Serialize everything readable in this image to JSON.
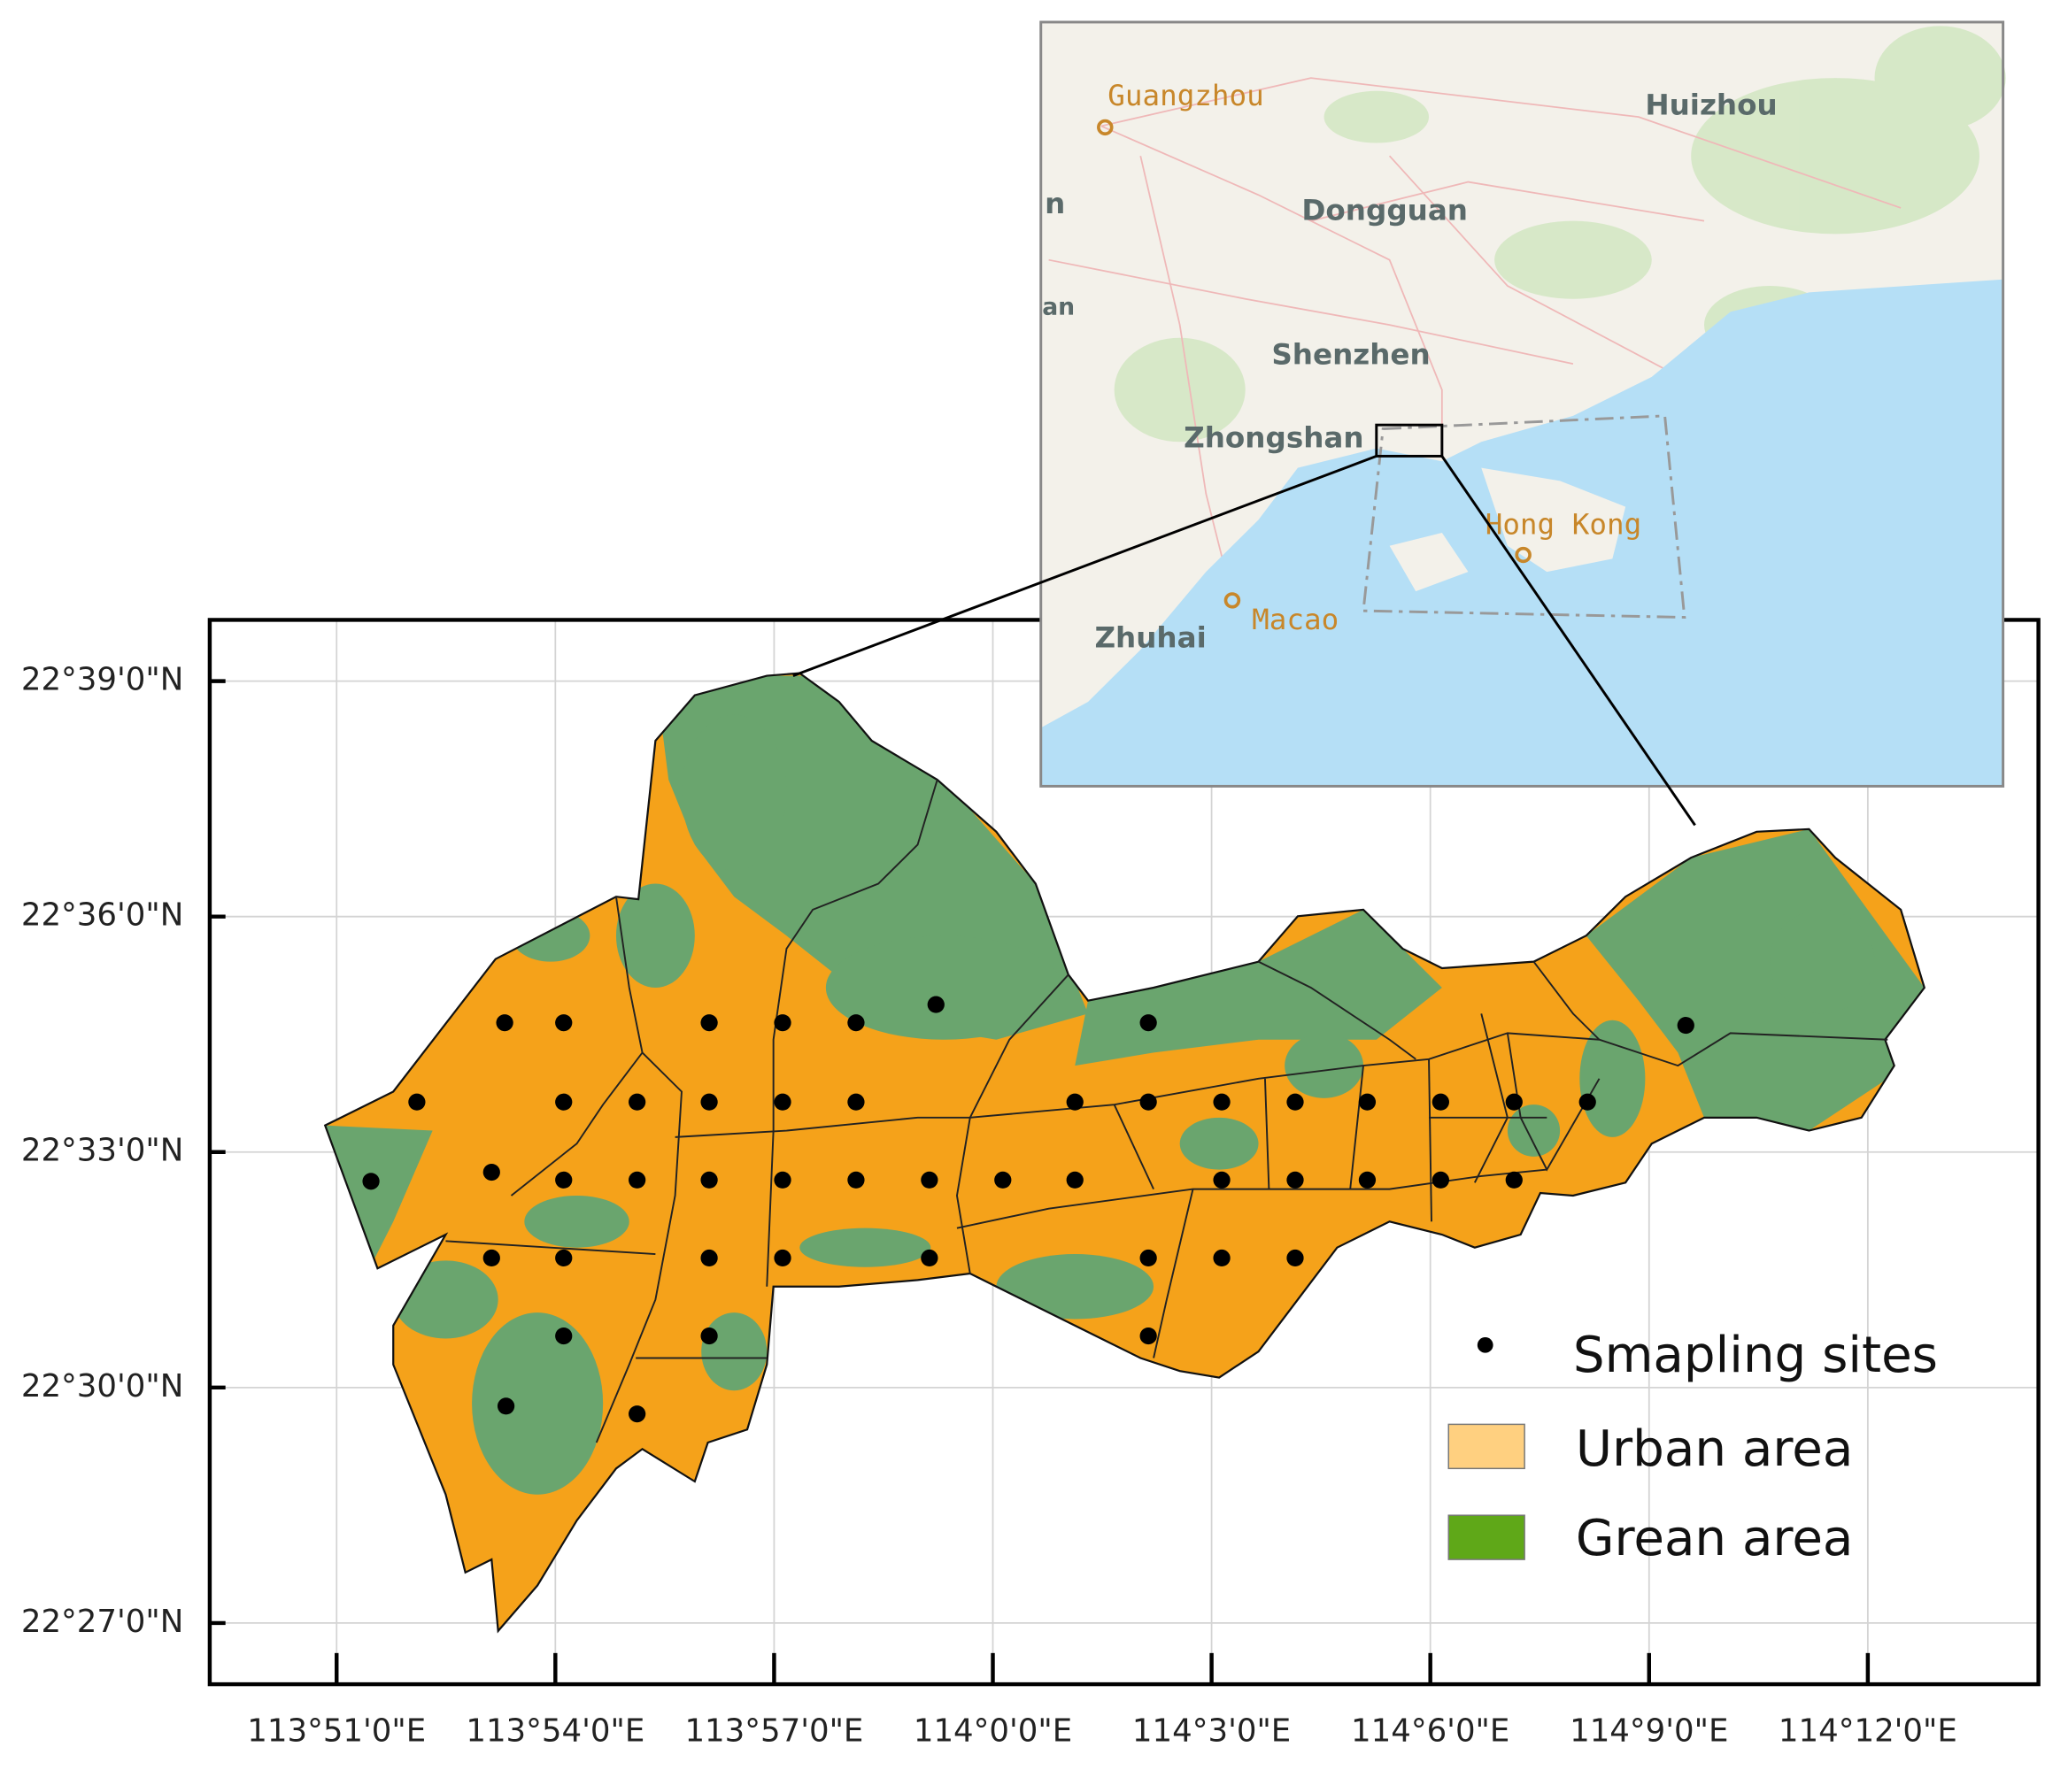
{
  "map": {
    "xlim": [
      113.821,
      114.239
    ],
    "ylim": [
      22.437,
      22.663
    ],
    "xticks": [
      {
        "value": 113.85,
        "label": "113°51'0\"E"
      },
      {
        "value": 113.9,
        "label": "113°54'0\"E"
      },
      {
        "value": 113.95,
        "label": "113°57'0\"E"
      },
      {
        "value": 114.0,
        "label": "114°0'0\"E"
      },
      {
        "value": 114.05,
        "label": "114°3'0\"E"
      },
      {
        "value": 114.1,
        "label": "114°6'0\"E"
      },
      {
        "value": 114.15,
        "label": "114°9'0\"E"
      },
      {
        "value": 114.2,
        "label": "114°12'0\"E"
      }
    ],
    "yticks": [
      {
        "value": 22.65,
        "label": "22°39'0\"N"
      },
      {
        "value": 22.6,
        "label": "22°36'0\"N"
      },
      {
        "value": 22.55,
        "label": "22°33'0\"N"
      },
      {
        "value": 22.5,
        "label": "22°30'0\"N"
      },
      {
        "value": 22.45,
        "label": "22°27'0\"N"
      }
    ]
  },
  "inset": {
    "labels": [
      "Guangzhou",
      "Huizhou",
      "n",
      "Dongguan",
      "an",
      "Shenzhen",
      "Zhongshan",
      "Hong Kong",
      "Macao",
      "Zhuhai"
    ]
  },
  "legend": [
    "Smapling sites",
    "Urban area",
    "Grean area"
  ]
}
